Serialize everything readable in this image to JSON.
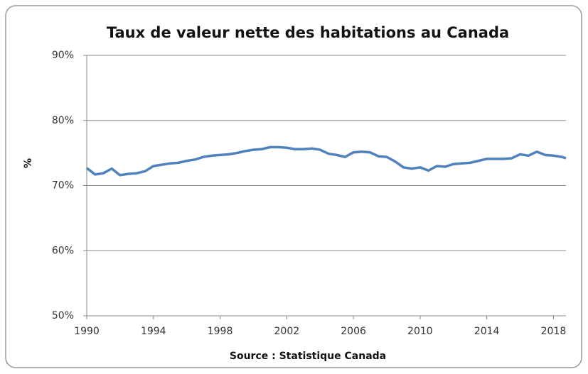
{
  "chart_data": {
    "type": "line",
    "title": "Taux de valeur nette des habitations au Canada",
    "y_label": "%",
    "x_label": "Source :  Statistique Canada",
    "x": [
      1990,
      1990.5,
      1991,
      1991.5,
      1992,
      1992.5,
      1993,
      1993.5,
      1994,
      1994.5,
      1995,
      1995.5,
      1996,
      1996.5,
      1997,
      1997.5,
      1998,
      1998.5,
      1999,
      1999.5,
      2000,
      2000.5,
      2001,
      2001.5,
      2002,
      2002.5,
      2003,
      2003.5,
      2004,
      2004.5,
      2005,
      2005.5,
      2006,
      2006.5,
      2007,
      2007.5,
      2008,
      2008.5,
      2009,
      2009.5,
      2010,
      2010.5,
      2011,
      2011.5,
      2012,
      2012.5,
      2013,
      2013.5,
      2014,
      2014.5,
      2015,
      2015.5,
      2016,
      2016.5,
      2017,
      2017.5,
      2018,
      2018.5,
      2018.75
    ],
    "series": [
      {
        "name": "Taux de valeur nette",
        "color": "#4f81bd",
        "values": [
          72.7,
          71.7,
          71.9,
          72.6,
          71.6,
          71.8,
          71.9,
          72.2,
          73.0,
          73.2,
          73.4,
          73.5,
          73.8,
          74.0,
          74.4,
          74.6,
          74.7,
          74.8,
          75.0,
          75.3,
          75.5,
          75.6,
          75.9,
          75.9,
          75.8,
          75.6,
          75.6,
          75.7,
          75.5,
          74.9,
          74.7,
          74.4,
          75.1,
          75.2,
          75.1,
          74.5,
          74.4,
          73.7,
          72.8,
          72.6,
          72.8,
          72.3,
          73.0,
          72.9,
          73.3,
          73.4,
          73.5,
          73.8,
          74.1,
          74.1,
          74.1,
          74.2,
          74.8,
          74.6,
          75.2,
          74.7,
          74.6,
          74.4,
          74.2
        ]
      }
    ],
    "xlim": [
      1990,
      2018.75
    ],
    "xticks": [
      1990,
      1994,
      1998,
      2002,
      2006,
      2010,
      2014,
      2018
    ],
    "ylim": [
      50,
      90
    ],
    "yticks": [
      {
        "value": 50,
        "label": "50%"
      },
      {
        "value": 60,
        "label": "60%"
      },
      {
        "value": 70,
        "label": "70%"
      },
      {
        "value": 80,
        "label": "80%"
      },
      {
        "value": 90,
        "label": "90%"
      }
    ],
    "grid": true
  }
}
